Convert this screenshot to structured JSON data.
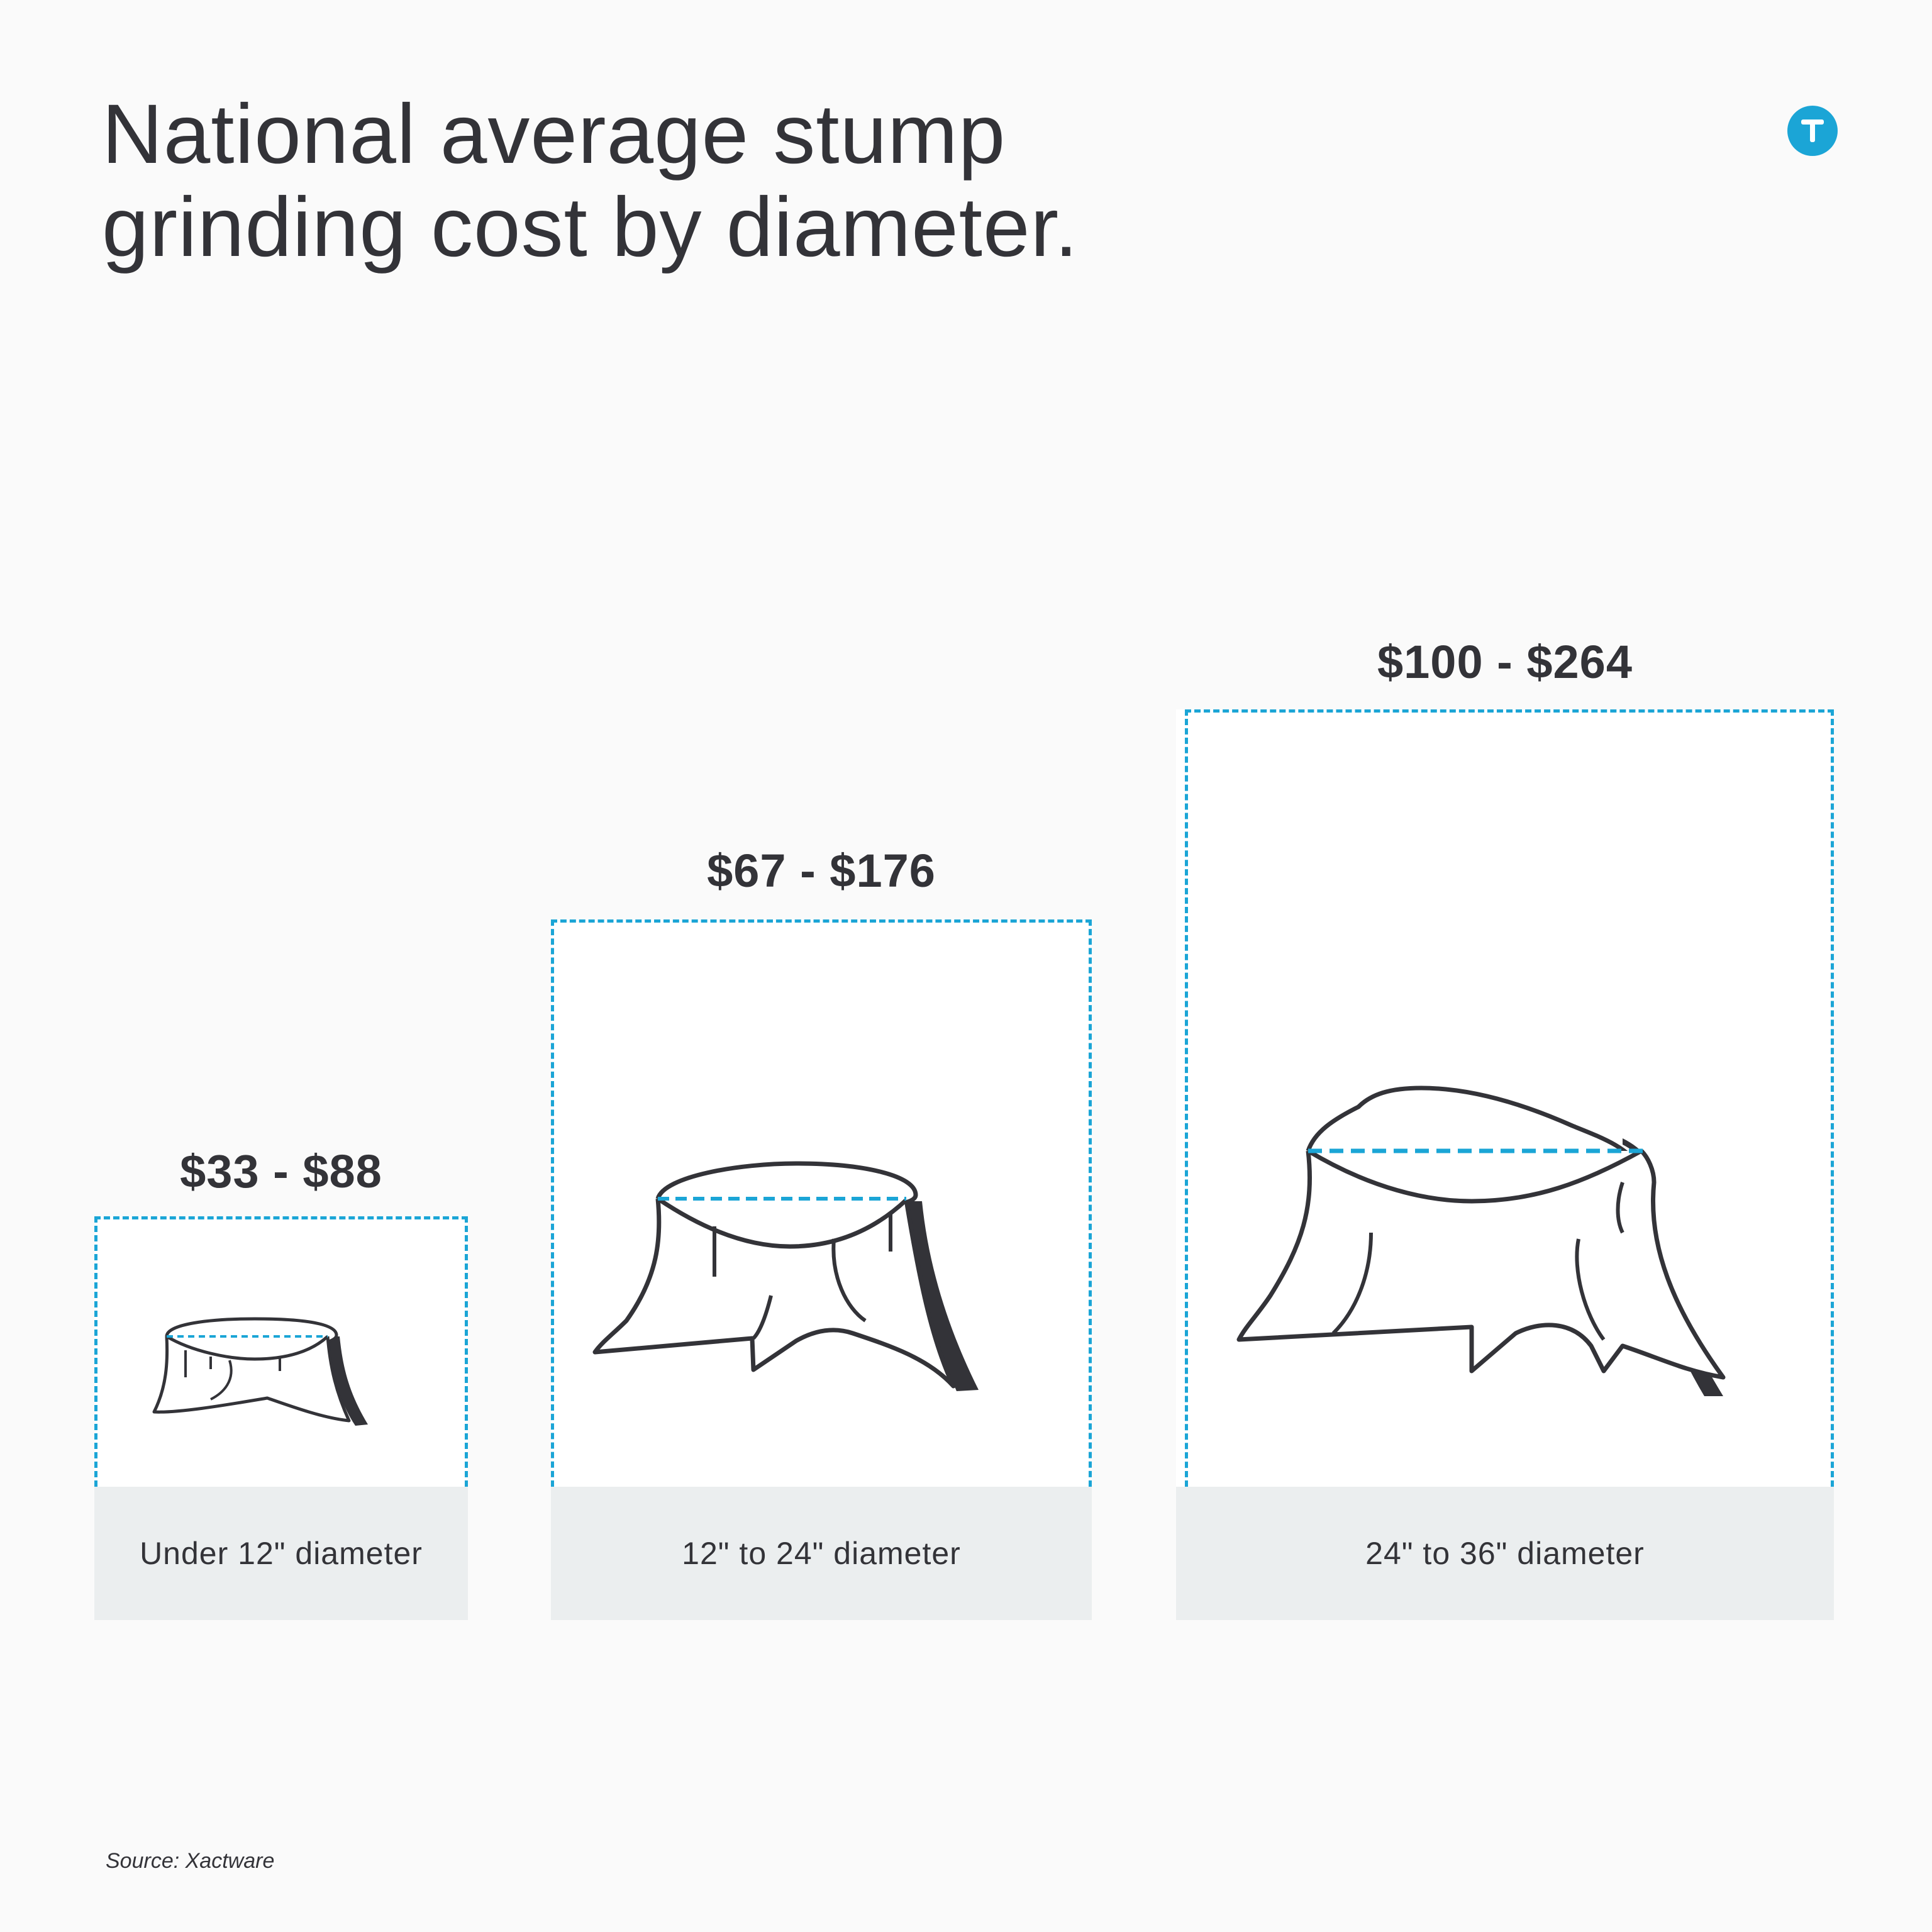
{
  "title": {
    "line1": "National average stump",
    "line2": "grinding cost by diameter."
  },
  "brand": {
    "icon": "brand-logo-icon",
    "color": "#1ba5d6"
  },
  "colors": {
    "accent": "#1ba5d6",
    "ink": "#333338",
    "caption_bg": "#ebeeef",
    "background": "#fafafa"
  },
  "chart_data": {
    "type": "bar",
    "title": "National average stump grinding cost by diameter.",
    "categories": [
      "Under 12\" diameter",
      "12\" to 24\" diameter",
      "24\" to 36\" diameter"
    ],
    "price_labels": [
      "$33 - $88",
      "$67 - $176",
      "$100 - $264"
    ],
    "series": [
      {
        "name": "",
        "values": [
          33,
          67,
          100
        ]
      },
      {
        "name": "",
        "values": [
          88,
          176,
          264
        ]
      }
    ],
    "unit": "$"
  },
  "source": "Source: Xactware"
}
